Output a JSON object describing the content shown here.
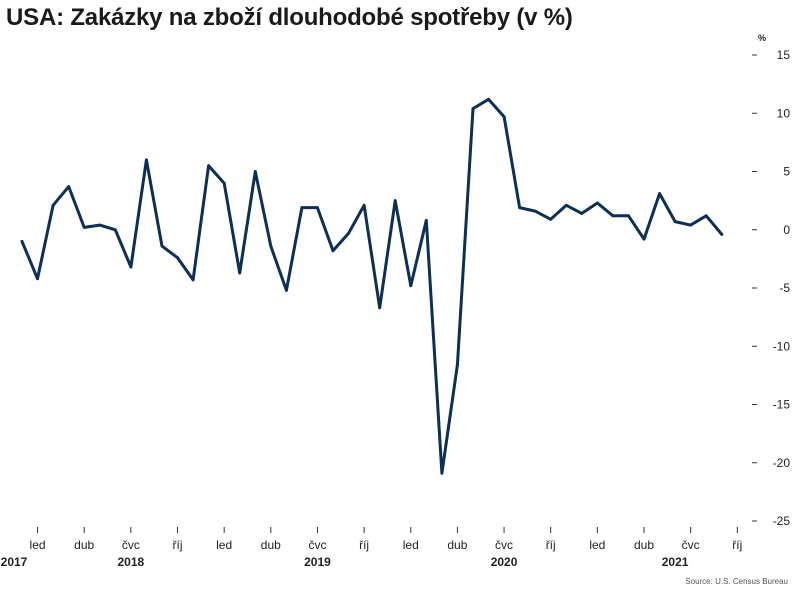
{
  "title": "USA: Zakázky na zboží dlouhodobé spotřeby (v %)",
  "source": "Source: U.S. Census Bureau",
  "chart_data": {
    "type": "line",
    "title": "USA: Zakázky na zboží dlouhodobé spotřeby (v %)",
    "unit_label": "%",
    "ylim": [
      -25,
      15
    ],
    "yticks": [
      15,
      10,
      5,
      0,
      -5,
      -10,
      -15,
      -20,
      -25
    ],
    "ytick_labels": [
      "15",
      "10",
      "5",
      "0",
      "-5",
      "-10",
      "-15",
      "-20",
      "-25"
    ],
    "grid": false,
    "line_color": "#0b2f55",
    "x_tick_labels": [
      {
        "label": "led",
        "month": 1
      },
      {
        "label": "dub",
        "month": 4
      },
      {
        "label": "čvc",
        "month": 7
      },
      {
        "label": "říj",
        "month": 10
      },
      {
        "label": "led",
        "month": 13
      },
      {
        "label": "dub",
        "month": 16
      },
      {
        "label": "čvc",
        "month": 19
      },
      {
        "label": "říj",
        "month": 22
      },
      {
        "label": "led",
        "month": 25
      },
      {
        "label": "dub",
        "month": 28
      },
      {
        "label": "čvc",
        "month": 31
      },
      {
        "label": "říj",
        "month": 34
      },
      {
        "label": "led",
        "month": 37
      },
      {
        "label": "dub",
        "month": 40
      },
      {
        "label": "čvc",
        "month": 43
      },
      {
        "label": "říj",
        "month": 46
      }
    ],
    "year_labels": [
      {
        "label": "2017",
        "month": -2
      },
      {
        "label": "2018",
        "month": 7
      },
      {
        "label": "2019",
        "month": 19
      },
      {
        "label": "2020",
        "month": 31
      },
      {
        "label": "2021",
        "month": 42
      }
    ],
    "series": [
      {
        "x": [
          0,
          1,
          2,
          3,
          4,
          5,
          6,
          7,
          8,
          9,
          10,
          11,
          12,
          13,
          14,
          15,
          16,
          17,
          18,
          19,
          20,
          21,
          22,
          23,
          24,
          25,
          26,
          27,
          28,
          29,
          30,
          31,
          32,
          33,
          34,
          35,
          36,
          37,
          38,
          39,
          40,
          41,
          42,
          43,
          44,
          45
        ],
        "values": [
          -1.0,
          -4.2,
          2.1,
          3.7,
          0.2,
          0.4,
          0.0,
          -3.2,
          6.0,
          -1.4,
          -2.4,
          -4.3,
          5.5,
          4.0,
          -3.7,
          5.0,
          -1.4,
          -5.2,
          1.9,
          1.9,
          -1.8,
          -0.3,
          2.1,
          -6.7,
          2.5,
          -4.8,
          0.8,
          -20.9,
          -11.6,
          10.4,
          11.2,
          9.7,
          1.9,
          1.6,
          0.9,
          2.1,
          1.4,
          2.3,
          1.2,
          1.2,
          -0.8,
          3.1,
          0.7,
          0.4,
          1.2,
          -0.4
        ]
      }
    ]
  }
}
